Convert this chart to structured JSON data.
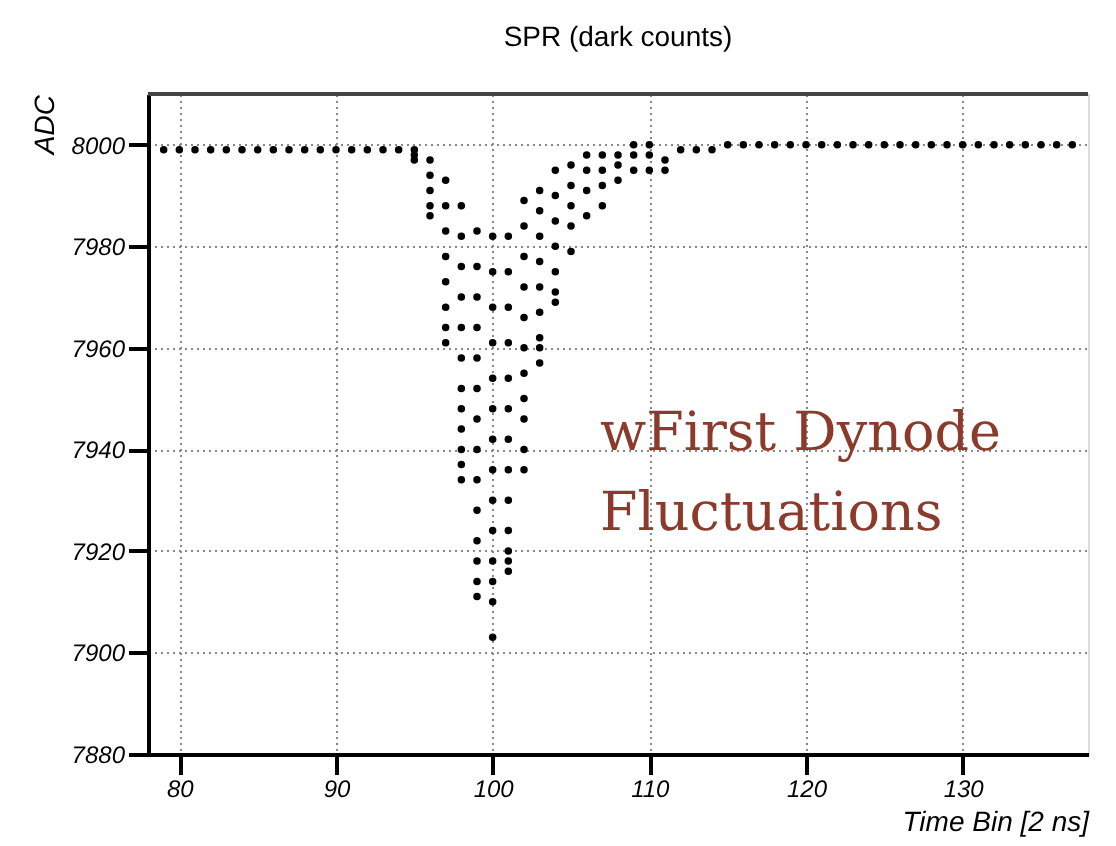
{
  "chart_data": {
    "type": "scatter",
    "title": "SPR (dark counts)",
    "xlabel": "Time Bin [2 ns]",
    "ylabel": "ADC",
    "annotations": [
      "wFirst Dynode Fluctuations"
    ],
    "xlim": [
      78,
      138
    ],
    "ylim": [
      7880,
      8010
    ],
    "xticks": [
      80,
      90,
      100,
      110,
      120,
      130
    ],
    "yticks": [
      7880,
      7900,
      7920,
      7940,
      7960,
      7980,
      8000
    ],
    "grid": true,
    "marker": "circle",
    "series": [
      {
        "color": "#000000",
        "x": [
          79,
          80,
          81,
          82,
          83,
          84,
          85,
          86,
          87,
          88,
          89,
          90,
          91,
          92,
          93,
          94
        ],
        "values": [
          7999,
          7999,
          7999,
          7999,
          7999,
          7999,
          7999,
          7999,
          7999,
          7999,
          7999,
          7999,
          7999,
          7999,
          7999,
          7999
        ]
      },
      {
        "color": "#000000",
        "x": [
          95,
          95,
          95
        ],
        "values": [
          7999,
          7998,
          7997
        ]
      },
      {
        "color": "#000000",
        "x": [
          96,
          96,
          96,
          96,
          96
        ],
        "values": [
          7997,
          7994,
          7991,
          7988,
          7986
        ]
      },
      {
        "color": "#000000",
        "x": [
          97,
          97,
          97,
          97,
          97,
          97,
          97,
          97
        ],
        "values": [
          7993,
          7988,
          7983,
          7978,
          7973,
          7968,
          7964,
          7961
        ]
      },
      {
        "color": "#000000",
        "x": [
          98,
          98,
          98,
          98,
          98,
          98,
          98,
          98,
          98,
          98,
          98,
          98
        ],
        "values": [
          7988,
          7982,
          7976,
          7970,
          7964,
          7958,
          7952,
          7948,
          7944,
          7940,
          7937,
          7934
        ]
      },
      {
        "color": "#000000",
        "x": [
          99,
          99,
          99,
          99,
          99,
          99,
          99,
          99,
          99,
          99,
          99,
          99,
          99,
          99
        ],
        "values": [
          7983,
          7976,
          7970,
          7964,
          7958,
          7952,
          7946,
          7940,
          7934,
          7928,
          7922,
          7918,
          7914,
          7911
        ]
      },
      {
        "color": "#000000",
        "x": [
          100,
          100,
          100,
          100,
          100,
          100,
          100,
          100,
          100,
          100,
          100,
          100,
          100,
          100
        ],
        "values": [
          7982,
          7975,
          7968,
          7961,
          7954,
          7948,
          7942,
          7936,
          7930,
          7924,
          7918,
          7914,
          7910,
          7903
        ]
      },
      {
        "color": "#000000",
        "x": [
          101,
          101,
          101,
          101,
          101,
          101,
          101,
          101,
          101,
          101,
          101,
          101,
          101
        ],
        "values": [
          7982,
          7975,
          7968,
          7961,
          7954,
          7948,
          7942,
          7936,
          7930,
          7924,
          7920,
          7918,
          7916
        ]
      },
      {
        "color": "#000000",
        "x": [
          102,
          102,
          102,
          102,
          102,
          102,
          102,
          102,
          102,
          102,
          102
        ],
        "values": [
          7989,
          7984,
          7978,
          7972,
          7966,
          7960,
          7955,
          7950,
          7946,
          7940,
          7936
        ]
      },
      {
        "color": "#000000",
        "x": [
          103,
          103,
          103,
          103,
          103,
          103,
          103,
          103,
          103
        ],
        "values": [
          7991,
          7987,
          7982,
          7977,
          7972,
          7967,
          7962,
          7960,
          7957
        ]
      },
      {
        "color": "#000000",
        "x": [
          104,
          104,
          104,
          104,
          104,
          104,
          104
        ],
        "values": [
          7995,
          7990,
          7985,
          7980,
          7975,
          7971,
          7969
        ]
      },
      {
        "color": "#000000",
        "x": [
          105,
          105,
          105,
          105,
          105
        ],
        "values": [
          7996,
          7992,
          7988,
          7984,
          7979
        ]
      },
      {
        "color": "#000000",
        "x": [
          106,
          106,
          106,
          106
        ],
        "values": [
          7998,
          7995,
          7991,
          7986
        ]
      },
      {
        "color": "#000000",
        "x": [
          107,
          107,
          107,
          107
        ],
        "values": [
          7998,
          7995,
          7992,
          7988
        ]
      },
      {
        "color": "#000000",
        "x": [
          108,
          108,
          108
        ],
        "values": [
          7998,
          7996,
          7993
        ]
      },
      {
        "color": "#000000",
        "x": [
          109,
          109,
          109
        ],
        "values": [
          8000,
          7998,
          7995
        ]
      },
      {
        "color": "#000000",
        "x": [
          110,
          110,
          110
        ],
        "values": [
          8000,
          7998,
          7995
        ]
      },
      {
        "color": "#000000",
        "x": [
          111,
          111
        ],
        "values": [
          7997,
          7995
        ]
      },
      {
        "color": "#000000",
        "x": [
          112,
          113,
          114
        ],
        "values": [
          7999,
          7999,
          7999
        ]
      },
      {
        "color": "#000000",
        "x": [
          115,
          116,
          117,
          118,
          119,
          120,
          121,
          122,
          123,
          124,
          125,
          126,
          127,
          128,
          129,
          130,
          131,
          132,
          133,
          134,
          135,
          136,
          137
        ],
        "values": [
          8000,
          8000,
          8000,
          8000,
          8000,
          8000,
          8000,
          8000,
          8000,
          8000,
          8000,
          8000,
          8000,
          8000,
          8000,
          8000,
          8000,
          8000,
          8000,
          8000,
          8000,
          8000,
          8000
        ]
      }
    ]
  }
}
